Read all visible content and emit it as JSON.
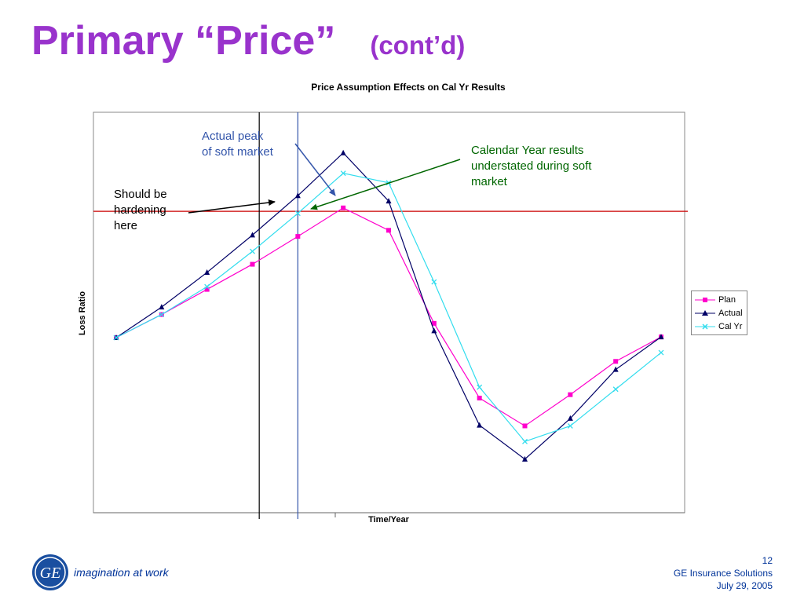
{
  "slide": {
    "title": "Primary “Price”",
    "subtitle": "(cont’d)",
    "tagline": "imagination at work",
    "logo_text": "GE",
    "page_number": "12",
    "company": "GE Insurance Solutions",
    "date": "July 29, 2005"
  },
  "annotations": {
    "peak": "Actual peak\nof soft market",
    "calendar": "Calendar Year results understated during soft market",
    "hardening": "Should be\nhardening\nhere"
  },
  "colors": {
    "title": "#9933cc",
    "plan": "#ff00cc",
    "actual": "#000066",
    "calyr": "#33ddee",
    "reference": "#cc0000",
    "brand": "#003399"
  },
  "chart_data": {
    "type": "line",
    "title": "Price Assumption Effects on Cal Yr Results",
    "xlabel": "Time/Year",
    "ylabel": "Loss Ratio",
    "x": [
      1,
      2,
      3,
      4,
      5,
      6,
      7,
      8,
      9,
      10,
      11,
      12,
      13
    ],
    "series": [
      {
        "name": "Plan",
        "marker": "square",
        "values": [
          0,
          3.4,
          7.1,
          10.8,
          14.9,
          19.1,
          15.8,
          2.1,
          -8.9,
          -13.0,
          -8.4,
          -3.5,
          0.1
        ]
      },
      {
        "name": "Actual",
        "marker": "triangle",
        "values": [
          0,
          4.5,
          9.6,
          15.1,
          20.9,
          27.2,
          20.1,
          1.0,
          -12.9,
          -17.9,
          -11.9,
          -4.7,
          0.1
        ]
      },
      {
        "name": "Cal Yr",
        "marker": "x",
        "values": [
          0,
          3.4,
          7.5,
          12.7,
          18.3,
          24.2,
          22.8,
          8.2,
          -7.3,
          -15.3,
          -13.0,
          -7.6,
          -2.2
        ]
      }
    ],
    "reference_lines": {
      "horizontal_y": 18.6,
      "vertical_x": [
        4.15,
        5.0
      ]
    },
    "grid": false,
    "legend": "right"
  }
}
